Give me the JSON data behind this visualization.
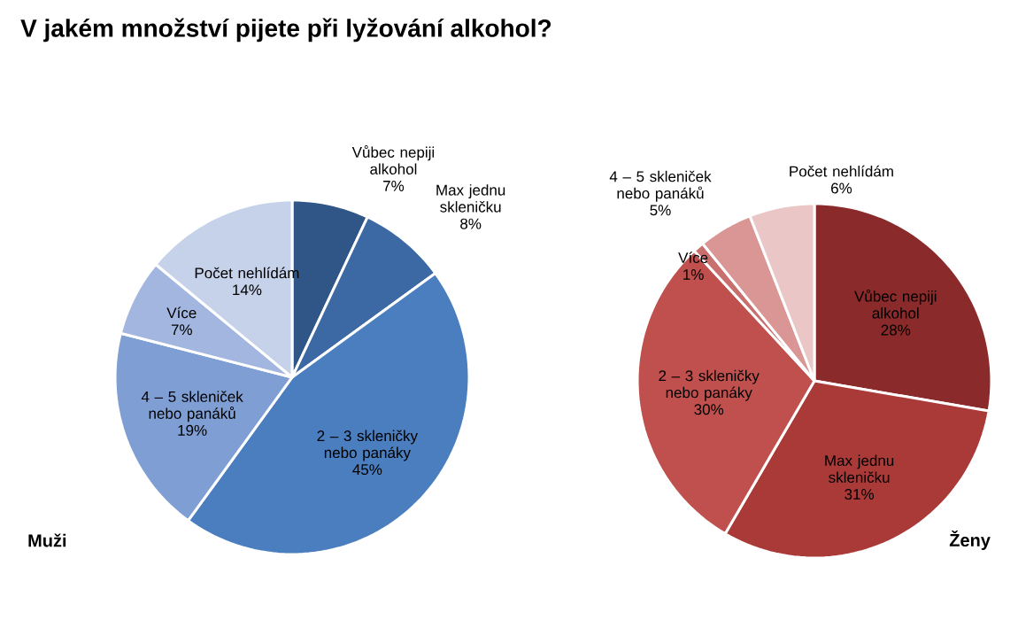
{
  "chart_data": [
    {
      "type": "pie",
      "title": "V jakém množství pijete při lyžování alkohol?",
      "subtitle": "Muži",
      "categories": [
        "Vůbec nepiji alkohol",
        "Max jednu skleničku",
        "2 – 3 skleničky nebo panáky",
        "4 – 5 skleniček nebo panáků",
        "Více",
        "Počet nehlídám"
      ],
      "values": [
        7,
        8,
        45,
        19,
        7,
        14
      ],
      "value_labels": [
        "7%",
        "8%",
        "45%",
        "19%",
        "7%",
        "14%"
      ],
      "colors": [
        "#2f5687",
        "#3c69a3",
        "#4a7ebf",
        "#7f9fd4",
        "#a3b6df",
        "#c6d1ea"
      ]
    },
    {
      "type": "pie",
      "subtitle": "Ženy",
      "categories": [
        "Vůbec nepiji alkohol",
        "Max jednu skleničku",
        "2 – 3 skleničky nebo panáky",
        "Více",
        "4 – 5 skleniček nebo panáků",
        "Počet nehlídám"
      ],
      "values": [
        28,
        31,
        30,
        1,
        5,
        6
      ],
      "value_labels": [
        "28%",
        "31%",
        "30%",
        "1%",
        "5%",
        "6%"
      ],
      "colors": [
        "#8b2a2a",
        "#a93a38",
        "#c0504d",
        "#c9706e",
        "#d99694",
        "#ebc6c6"
      ]
    }
  ]
}
